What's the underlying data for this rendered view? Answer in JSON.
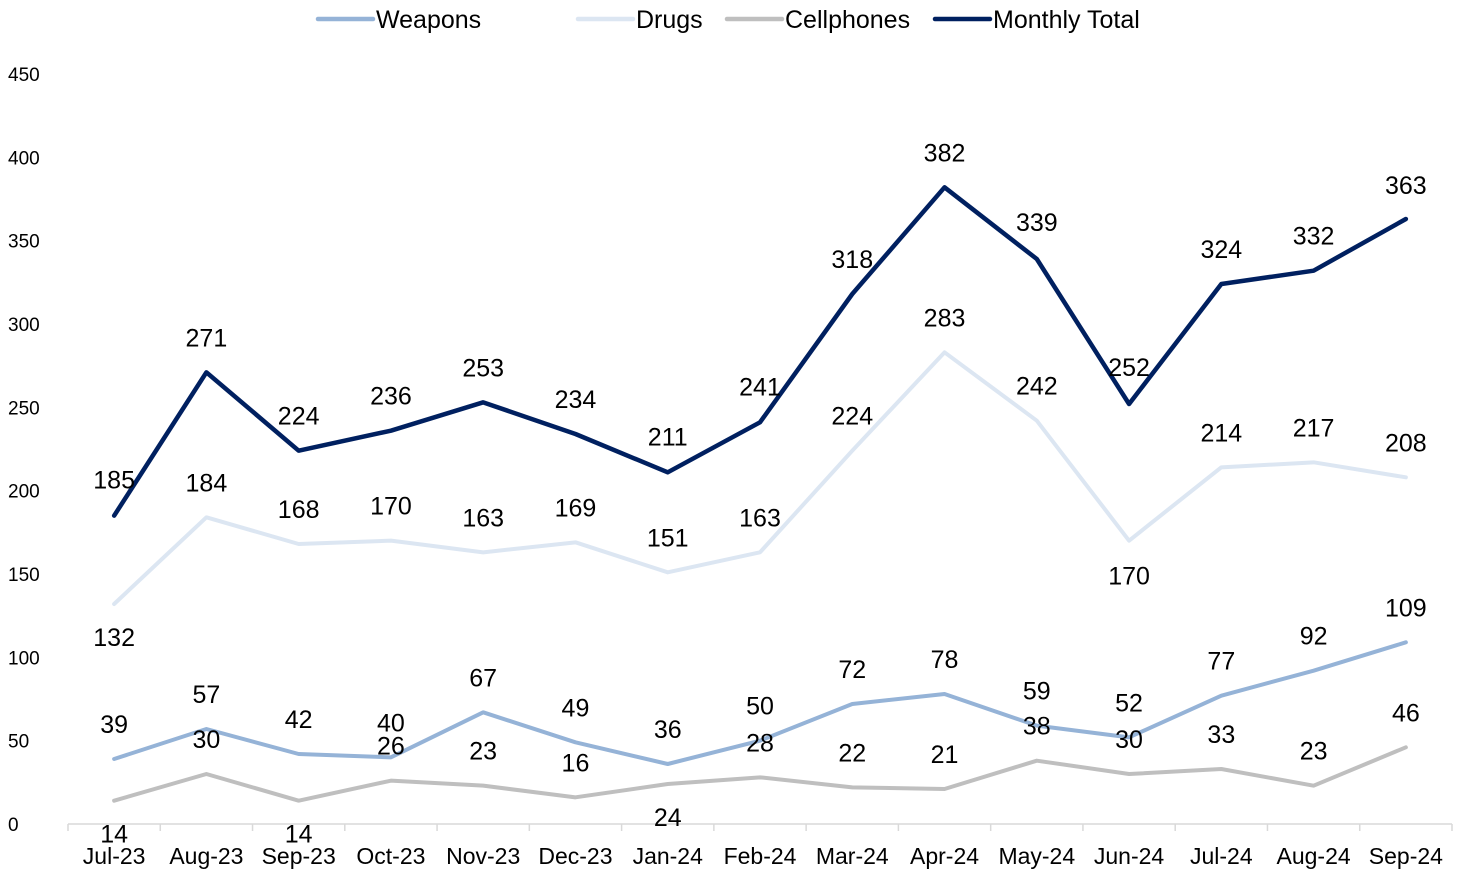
{
  "chart_data": {
    "type": "line",
    "title": "",
    "xlabel": "",
    "ylabel": "",
    "ylim": [
      0,
      450
    ],
    "yticks": [
      0,
      50,
      100,
      150,
      200,
      250,
      300,
      350,
      400,
      450
    ],
    "grid": false,
    "legend_position": "top",
    "categories": [
      "Jul-23",
      "Aug-23",
      "Sep-23",
      "Oct-23",
      "Nov-23",
      "Dec-23",
      "Jan-24",
      "Feb-24",
      "Mar-24",
      "Apr-24",
      "May-24",
      "Jun-24",
      "Jul-24",
      "Aug-24",
      "Sep-24"
    ],
    "series": [
      {
        "name": "Weapons",
        "color": "#95B3D7",
        "values": [
          39,
          57,
          42,
          40,
          67,
          49,
          36,
          50,
          72,
          78,
          59,
          52,
          77,
          92,
          109
        ]
      },
      {
        "name": "Drugs",
        "color": "#DCE6F2",
        "values": [
          132,
          184,
          168,
          170,
          163,
          169,
          151,
          163,
          224,
          283,
          242,
          170,
          214,
          217,
          208
        ]
      },
      {
        "name": "Cellphones",
        "color": "#BFBFBF",
        "values": [
          14,
          30,
          14,
          26,
          23,
          16,
          24,
          28,
          22,
          21,
          38,
          30,
          33,
          23,
          46
        ]
      },
      {
        "name": "Monthly Total",
        "color": "#002060",
        "values": [
          185,
          271,
          224,
          236,
          253,
          234,
          211,
          241,
          318,
          382,
          339,
          252,
          324,
          332,
          363
        ]
      }
    ]
  }
}
